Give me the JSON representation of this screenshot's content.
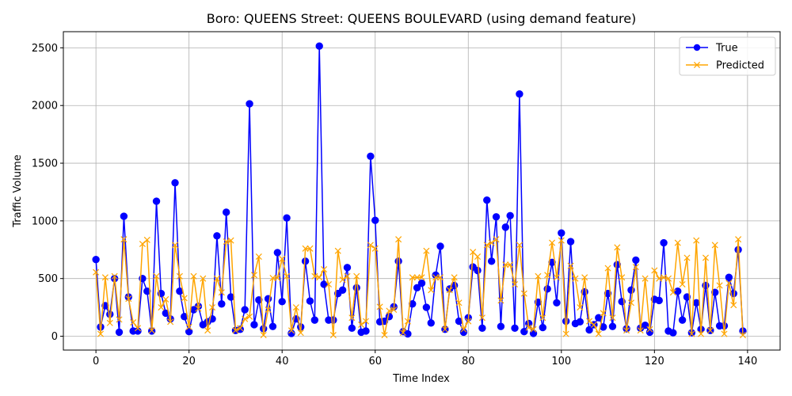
{
  "chart_data": {
    "type": "line",
    "title": "Boro: QUEENS Street: QUEENS BOULEVARD (using demand feature)",
    "xlabel": "Time Index",
    "ylabel": "Traffic Volume",
    "xlim": [
      -7,
      147
    ],
    "ylim": [
      -120,
      2640
    ],
    "xticks": [
      0,
      20,
      40,
      60,
      80,
      100,
      120,
      140
    ],
    "yticks": [
      0,
      500,
      1000,
      1500,
      2000,
      2500
    ],
    "grid": true,
    "legend_position": "top-right",
    "series": [
      {
        "name": "True",
        "color": "#0000ff",
        "marker": "circle",
        "values": [
          665,
          80,
          265,
          190,
          500,
          35,
          1040,
          340,
          45,
          45,
          500,
          390,
          45,
          1170,
          370,
          200,
          150,
          1330,
          390,
          170,
          40,
          230,
          260,
          100,
          125,
          150,
          870,
          280,
          1075,
          340,
          50,
          60,
          230,
          2015,
          100,
          315,
          65,
          325,
          85,
          725,
          300,
          1025,
          25,
          150,
          80,
          650,
          305,
          140,
          2515,
          450,
          140,
          140,
          370,
          400,
          595,
          70,
          420,
          35,
          45,
          1560,
          1005,
          125,
          130,
          170,
          255,
          650,
          40,
          20,
          280,
          420,
          460,
          250,
          115,
          530,
          780,
          60,
          410,
          440,
          130,
          35,
          160,
          600,
          570,
          70,
          1180,
          650,
          1035,
          85,
          945,
          1045,
          70,
          2100,
          40,
          110,
          25,
          295,
          75,
          410,
          640,
          290,
          895,
          130,
          820,
          110,
          125,
          385,
          55,
          100,
          160,
          80,
          370,
          85,
          620,
          300,
          65,
          400,
          660,
          70,
          95,
          35,
          320,
          310,
          810,
          45,
          30,
          390,
          140,
          340,
          30,
          290,
          60,
          440,
          50,
          380,
          90,
          90,
          510,
          370,
          750,
          45
        ]
      },
      {
        "name": "Predicted",
        "color": "#ffa500",
        "marker": "x",
        "values": [
          555,
          20,
          510,
          115,
          520,
          145,
          840,
          325,
          120,
          70,
          800,
          835,
          50,
          520,
          250,
          320,
          125,
          790,
          520,
          330,
          80,
          520,
          240,
          500,
          50,
          250,
          500,
          380,
          820,
          830,
          50,
          70,
          150,
          170,
          530,
          690,
          10,
          230,
          505,
          505,
          670,
          520,
          50,
          250,
          30,
          760,
          760,
          520,
          510,
          580,
          450,
          10,
          740,
          490,
          520,
          160,
          520,
          100,
          130,
          790,
          760,
          255,
          10,
          220,
          230,
          840,
          30,
          130,
          510,
          510,
          510,
          740,
          400,
          510,
          510,
          60,
          400,
          510,
          290,
          60,
          130,
          730,
          690,
          160,
          790,
          810,
          840,
          310,
          620,
          620,
          450,
          790,
          370,
          75,
          60,
          520,
          160,
          530,
          810,
          510,
          830,
          20,
          610,
          500,
          250,
          510,
          130,
          100,
          20,
          200,
          590,
          160,
          770,
          510,
          50,
          290,
          600,
          50,
          500,
          60,
          570,
          500,
          510,
          500,
          380,
          810,
          450,
          680,
          20,
          830,
          20,
          680,
          50,
          790,
          440,
          20,
          460,
          270,
          840,
          10
        ]
      }
    ]
  }
}
